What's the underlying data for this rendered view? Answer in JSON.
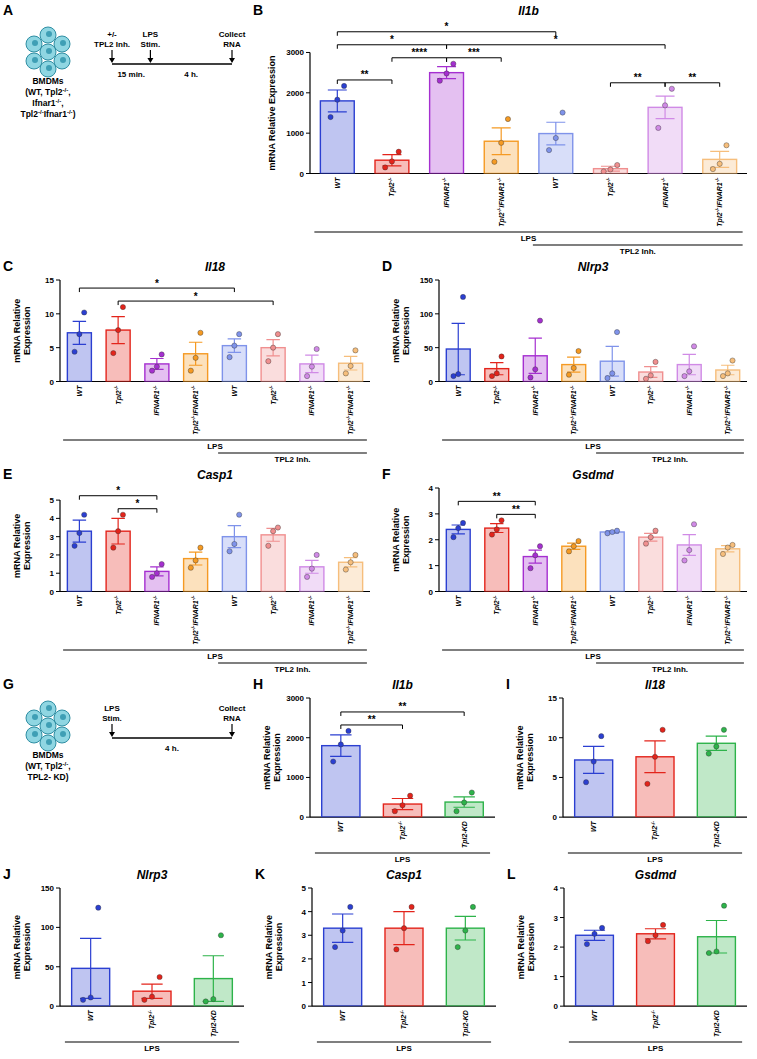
{
  "chart_data": [
    {
      "type": "bar",
      "panel": "B",
      "title": "Il1b",
      "y_label": "mRNA Relative Expression",
      "categories": [
        "WT",
        "Tpl2-/-",
        "IFNAR1-/-",
        "Tpl2-/-IFNAR1-/-",
        "WT",
        "Tpl2-/-",
        "IFNAR1-/-",
        "Tpl2-/-IFNAR1-/-"
      ],
      "values": [
        1800,
        330,
        2500,
        800,
        990,
        120,
        1640,
        350
      ],
      "errors": [
        270,
        140,
        150,
        330,
        280,
        60,
        280,
        200
      ],
      "points": [
        [
          1400,
          1830,
          2170
        ],
        [
          150,
          300,
          540
        ],
        [
          2300,
          2480,
          2720
        ],
        [
          290,
          760,
          1350
        ],
        [
          580,
          880,
          1510
        ],
        [
          50,
          100,
          210
        ],
        [
          1130,
          1690,
          2100
        ],
        [
          110,
          240,
          700
        ]
      ],
      "colors": [
        "#2b3fd1",
        "#e3241b",
        "#a52fd0",
        "#f59a23",
        "#7f93ea",
        "#f08f8f",
        "#d08ae6",
        "#f6be7c"
      ],
      "marker": "circle",
      "ylim": [
        0,
        3000
      ],
      "yticks": [
        0,
        1000,
        2000,
        3000
      ],
      "significance": [
        {
          "from": 0,
          "to": 1,
          "label": "**"
        },
        {
          "from": 1,
          "to": 2,
          "label": "****"
        },
        {
          "from": 2,
          "to": 3,
          "label": "***"
        },
        {
          "from": 5,
          "to": 6,
          "label": "**"
        },
        {
          "from": 6,
          "to": 7,
          "label": "**"
        },
        {
          "from": 0,
          "to": 2,
          "label": "*"
        },
        {
          "from": 2,
          "to": 6,
          "label": "*"
        },
        {
          "from": 0,
          "to": 4,
          "label": "*"
        }
      ],
      "groups": [
        {
          "label": "LPS",
          "from": 0,
          "to": 7
        },
        {
          "label": "TPL2 Inh.",
          "from": 4,
          "to": 7
        }
      ]
    },
    {
      "type": "bar",
      "panel": "C",
      "title": "Il18",
      "y_label": "mRNA Relative Expression",
      "categories": [
        "WT",
        "Tpl2-/-",
        "IFNAR1-/-",
        "Tpl2-/-IFNAR1-/-",
        "WT",
        "Tpl2-/-",
        "IFNAR1-/-",
        "Tpl2-/-IFNAR1-/-"
      ],
      "values": [
        7.2,
        7.6,
        2.6,
        4.1,
        5.3,
        5.0,
        2.6,
        2.7
      ],
      "errors": [
        1.7,
        2.0,
        0.8,
        1.7,
        1.0,
        1.2,
        1.3,
        1.0
      ],
      "points": [
        [
          4.4,
          7.0,
          10.2
        ],
        [
          4.2,
          7.6,
          11.0
        ],
        [
          1.6,
          2.2,
          4.0
        ],
        [
          1.6,
          3.5,
          7.2
        ],
        [
          3.6,
          5.3,
          7.0
        ],
        [
          3.0,
          5.0,
          7.0
        ],
        [
          0.8,
          2.2,
          4.8
        ],
        [
          1.2,
          2.3,
          4.6
        ]
      ],
      "colors": [
        "#2b3fd1",
        "#e3241b",
        "#a52fd0",
        "#f59a23",
        "#7f93ea",
        "#f08f8f",
        "#d08ae6",
        "#f6be7c"
      ],
      "marker": "circle",
      "ylim": [
        0,
        15
      ],
      "yticks": [
        0,
        5,
        10,
        15
      ],
      "significance": [
        {
          "from": 1,
          "to": 5,
          "label": "*"
        },
        {
          "from": 0,
          "to": 4,
          "label": "*"
        }
      ],
      "groups": [
        {
          "label": "LPS",
          "from": 0,
          "to": 7
        },
        {
          "label": "TPL2 Inh.",
          "from": 4,
          "to": 7
        }
      ]
    },
    {
      "type": "bar",
      "panel": "D",
      "title": "Nlrp3",
      "y_label": "mRNA Relative Expression",
      "categories": [
        "WT",
        "Tpl2-/-",
        "IFNAR1-/-",
        "Tpl2-/-IFNAR1-/-",
        "WT",
        "Tpl2-/-",
        "IFNAR1-/-",
        "Tpl2-/-IFNAR1-/-"
      ],
      "values": [
        48,
        19,
        38,
        25,
        30,
        14,
        25,
        17
      ],
      "errors": [
        38,
        9,
        26,
        11,
        22,
        8,
        15,
        7
      ],
      "points": [
        [
          8,
          11,
          125
        ],
        [
          8,
          12,
          37
        ],
        [
          6,
          18,
          90
        ],
        [
          10,
          20,
          45
        ],
        [
          5,
          12,
          73
        ],
        [
          4,
          9,
          29
        ],
        [
          8,
          15,
          52
        ],
        [
          8,
          12,
          31
        ]
      ],
      "colors": [
        "#2b3fd1",
        "#e3241b",
        "#a52fd0",
        "#f59a23",
        "#7f93ea",
        "#f08f8f",
        "#d08ae6",
        "#f6be7c"
      ],
      "marker": "circle",
      "ylim": [
        0,
        150
      ],
      "yticks": [
        0,
        50,
        100,
        150
      ],
      "groups": [
        {
          "label": "LPS",
          "from": 0,
          "to": 7
        },
        {
          "label": "TPL2 Inh.",
          "from": 4,
          "to": 7
        }
      ]
    },
    {
      "type": "bar",
      "panel": "E",
      "title": "Casp1",
      "y_label": "mRNA Relative Expression",
      "categories": [
        "WT",
        "Tpl2-/-",
        "IFNAR1-/-",
        "Tpl2-/-IFNAR1-/-",
        "WT",
        "Tpl2-/-",
        "IFNAR1-/-",
        "Tpl2-/-IFNAR1-/-"
      ],
      "values": [
        3.3,
        3.3,
        1.1,
        1.8,
        3.0,
        3.1,
        1.35,
        1.6
      ],
      "errors": [
        0.6,
        0.7,
        0.25,
        0.35,
        0.6,
        0.35,
        0.35,
        0.25
      ],
      "points": [
        [
          2.5,
          3.2,
          4.2
        ],
        [
          2.4,
          3.3,
          4.2
        ],
        [
          0.8,
          1.0,
          1.5
        ],
        [
          1.3,
          1.7,
          2.4
        ],
        [
          2.2,
          2.6,
          4.2
        ],
        [
          2.5,
          3.3,
          3.5
        ],
        [
          0.8,
          1.25,
          2.0
        ],
        [
          1.2,
          1.6,
          2.0
        ]
      ],
      "colors": [
        "#2b3fd1",
        "#e3241b",
        "#a52fd0",
        "#f59a23",
        "#7f93ea",
        "#f08f8f",
        "#d08ae6",
        "#f6be7c"
      ],
      "marker": "circle",
      "ylim": [
        0,
        5
      ],
      "yticks": [
        0,
        1,
        2,
        3,
        4,
        5
      ],
      "significance": [
        {
          "from": 1,
          "to": 2,
          "label": "*"
        },
        {
          "from": 0,
          "to": 2,
          "label": "*"
        }
      ],
      "groups": [
        {
          "label": "LPS",
          "from": 0,
          "to": 7
        },
        {
          "label": "TPL2 Inh.",
          "from": 4,
          "to": 7
        }
      ]
    },
    {
      "type": "bar",
      "panel": "F",
      "title": "Gsdmd",
      "y_label": "mRNA Relative Expression",
      "categories": [
        "WT",
        "Tpl2-/-",
        "IFNAR1-/-",
        "Tpl2-/-IFNAR1-/-",
        "WT",
        "Tpl2-/-",
        "IFNAR1-/-",
        "Tpl2-/-IFNAR1-/-"
      ],
      "values": [
        2.4,
        2.45,
        1.35,
        1.75,
        2.3,
        2.1,
        1.8,
        1.65
      ],
      "errors": [
        0.17,
        0.17,
        0.25,
        0.12,
        0.05,
        0.15,
        0.4,
        0.12
      ],
      "points": [
        [
          2.1,
          2.45,
          2.65
        ],
        [
          2.2,
          2.4,
          2.75
        ],
        [
          0.9,
          1.4,
          1.75
        ],
        [
          1.55,
          1.75,
          1.95
        ],
        [
          2.25,
          2.3,
          2.35
        ],
        [
          1.85,
          2.1,
          2.35
        ],
        [
          1.2,
          1.6,
          2.6
        ],
        [
          1.45,
          1.7,
          1.8
        ]
      ],
      "colors": [
        "#2b3fd1",
        "#e3241b",
        "#a52fd0",
        "#f59a23",
        "#7f93ea",
        "#f08f8f",
        "#d08ae6",
        "#f6be7c"
      ],
      "marker": "circle",
      "ylim": [
        0,
        4
      ],
      "yticks": [
        0,
        1,
        2,
        3,
        4
      ],
      "significance": [
        {
          "from": 1,
          "to": 2,
          "label": "**"
        },
        {
          "from": 0,
          "to": 2,
          "label": "**"
        }
      ],
      "groups": [
        {
          "label": "LPS",
          "from": 0,
          "to": 7
        },
        {
          "label": "TPL2 Inh.",
          "from": 4,
          "to": 7
        }
      ]
    },
    {
      "type": "bar",
      "panel": "H",
      "title": "Il1b",
      "y_label": "mRNA Relative Expression",
      "categories": [
        "WT",
        "Tpl2-/-",
        "Tpl2-KD"
      ],
      "values": [
        1800,
        330,
        380
      ],
      "errors": [
        270,
        140,
        130
      ],
      "points": [
        [
          1400,
          1830,
          2170
        ],
        [
          150,
          300,
          540
        ],
        [
          150,
          370,
          620
        ]
      ],
      "colors": [
        "#2b3fd1",
        "#e3241b",
        "#2db34a"
      ],
      "marker": "circle",
      "ylim": [
        0,
        3000
      ],
      "yticks": [
        0,
        1000,
        2000,
        3000
      ],
      "significance": [
        {
          "from": 0,
          "to": 1,
          "label": "**"
        },
        {
          "from": 0,
          "to": 2,
          "label": "**"
        }
      ],
      "groups": [
        {
          "label": "LPS",
          "from": 0,
          "to": 2
        }
      ]
    },
    {
      "type": "bar",
      "panel": "I",
      "title": "Il18",
      "y_label": "mRNA Relative Expression",
      "categories": [
        "WT",
        "Tpl2-/-",
        "Tpl2-KD"
      ],
      "values": [
        7.2,
        7.6,
        9.3
      ],
      "errors": [
        1.7,
        2.0,
        0.9
      ],
      "points": [
        [
          4.4,
          7.0,
          10.2
        ],
        [
          4.2,
          7.6,
          11.0
        ],
        [
          8.0,
          8.9,
          11.0
        ]
      ],
      "colors": [
        "#2b3fd1",
        "#e3241b",
        "#2db34a"
      ],
      "marker": "circle",
      "ylim": [
        0,
        15
      ],
      "yticks": [
        0,
        5,
        10,
        15
      ],
      "groups": [
        {
          "label": "LPS",
          "from": 0,
          "to": 2
        }
      ]
    },
    {
      "type": "bar",
      "panel": "J",
      "title": "Nlrp3",
      "y_label": "mRNA Relative Expression",
      "categories": [
        "WT",
        "Tpl2-/-",
        "Tpl2-KD"
      ],
      "values": [
        48,
        19,
        35
      ],
      "errors": [
        38,
        9,
        29
      ],
      "points": [
        [
          8,
          11,
          125
        ],
        [
          8,
          12,
          37
        ],
        [
          6,
          9,
          90
        ]
      ],
      "colors": [
        "#2b3fd1",
        "#e3241b",
        "#2db34a"
      ],
      "marker": "circle",
      "ylim": [
        0,
        150
      ],
      "yticks": [
        0,
        50,
        100,
        150
      ],
      "groups": [
        {
          "label": "LPS",
          "from": 0,
          "to": 2
        }
      ]
    },
    {
      "type": "bar",
      "panel": "K",
      "title": "Casp1",
      "y_label": "mRNA Relative Expression",
      "categories": [
        "WT",
        "Tpl2-/-",
        "Tpl2-KD"
      ],
      "values": [
        3.3,
        3.3,
        3.3
      ],
      "errors": [
        0.6,
        0.7,
        0.5
      ],
      "points": [
        [
          2.5,
          3.2,
          4.2
        ],
        [
          2.4,
          3.3,
          4.2
        ],
        [
          2.5,
          3.2,
          4.2
        ]
      ],
      "colors": [
        "#2b3fd1",
        "#e3241b",
        "#2db34a"
      ],
      "marker": "circle",
      "ylim": [
        0,
        5
      ],
      "yticks": [
        0,
        1,
        2,
        3,
        4,
        5
      ],
      "groups": [
        {
          "label": "LPS",
          "from": 0,
          "to": 2
        }
      ]
    },
    {
      "type": "bar",
      "panel": "L",
      "title": "Gsdmd",
      "y_label": "mRNA Relative Expression",
      "categories": [
        "WT",
        "Tpl2-/-",
        "Tpl2-KD"
      ],
      "values": [
        2.4,
        2.45,
        2.35
      ],
      "errors": [
        0.17,
        0.17,
        0.55
      ],
      "points": [
        [
          2.1,
          2.45,
          2.65
        ],
        [
          2.2,
          2.4,
          2.75
        ],
        [
          1.8,
          1.85,
          3.4
        ]
      ],
      "colors": [
        "#2b3fd1",
        "#e3241b",
        "#2db34a"
      ],
      "marker": "circle",
      "ylim": [
        0,
        4
      ],
      "yticks": [
        0,
        1,
        2,
        3,
        4
      ],
      "groups": [
        {
          "label": "LPS",
          "from": 0,
          "to": 2
        }
      ]
    }
  ],
  "diagrams": [
    {
      "panel": "A",
      "cell_label": [
        "BMDMs",
        "(WT, Tpl2-/-,",
        "Ifnar1-/-,",
        "Tpl2-/-Ifnar1-/-)"
      ],
      "events": [
        {
          "label": [
            "+/-",
            "TPL2 Inh."
          ]
        },
        {
          "label": [
            "LPS",
            "Stim."
          ]
        },
        {
          "label": [
            "Collect",
            "RNA"
          ]
        }
      ],
      "intervals": [
        "15 min.",
        "4 h."
      ]
    },
    {
      "panel": "G",
      "cell_label": [
        "BMDMs",
        "(WT, Tpl2-/-,",
        "TPL2- KD)"
      ],
      "events": [
        {
          "label": [
            "LPS",
            "Stim."
          ]
        },
        {
          "label": [
            "Collect",
            "RNA"
          ]
        }
      ],
      "intervals": [
        "4 h."
      ]
    }
  ]
}
